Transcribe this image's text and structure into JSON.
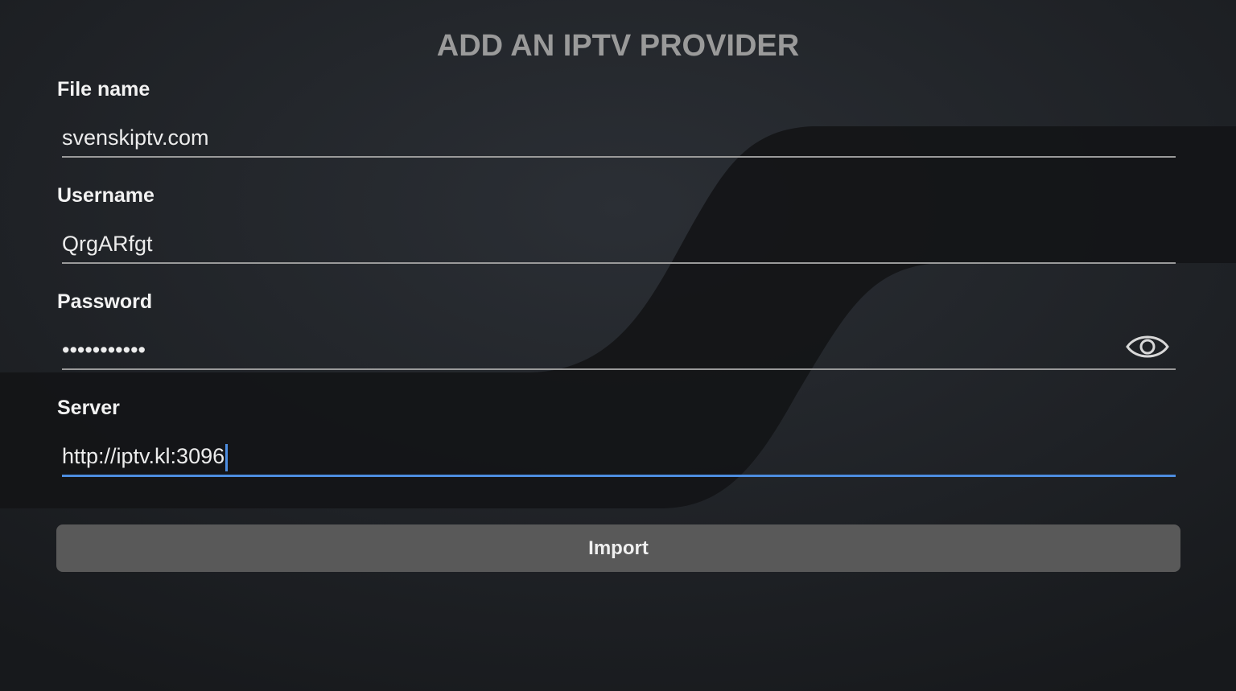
{
  "title": "ADD AN IPTV PROVIDER",
  "fields": [
    {
      "label": "File name",
      "value": "svenskiptv.com"
    },
    {
      "label": "Username",
      "value": "QrgARfgt"
    },
    {
      "label": "Password",
      "value": "•••••••••••"
    },
    {
      "label": "Server",
      "value": "http://iptv.kl:3096"
    }
  ],
  "button": "Import"
}
